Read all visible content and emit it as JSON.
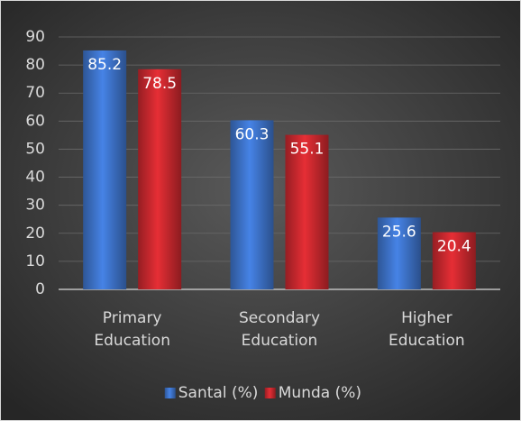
{
  "chart_data": {
    "type": "bar",
    "categories": [
      "Primary Education",
      "Secondary Education",
      "Higher Education"
    ],
    "series": [
      {
        "name": "Santal (%)",
        "color": "#3d72c8",
        "values": [
          85.2,
          60.3,
          25.6
        ]
      },
      {
        "name": "Munda (%)",
        "color": "#c8282e",
        "values": [
          78.5,
          55.1,
          20.4
        ]
      }
    ],
    "ylim": [
      0,
      90
    ],
    "yticks": [
      0,
      10,
      20,
      30,
      40,
      50,
      60,
      70,
      80,
      90
    ],
    "grid": true,
    "legend": "bottom"
  }
}
